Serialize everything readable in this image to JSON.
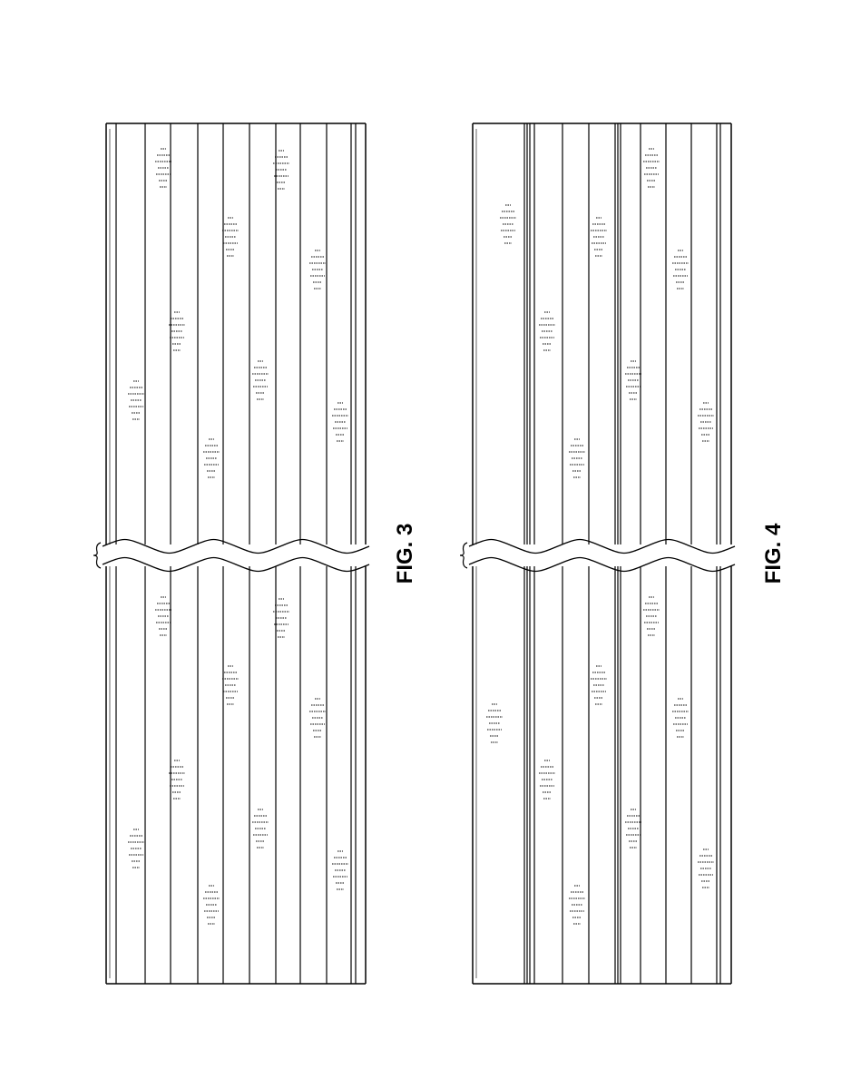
{
  "figures": [
    {
      "id": "fig3",
      "label": "FIG. 3",
      "lane_count": 9
    },
    {
      "id": "fig4",
      "label": "FIG. 4",
      "lane_count": 9
    }
  ],
  "colors": {
    "line": "#000000",
    "background": "#ffffff"
  }
}
